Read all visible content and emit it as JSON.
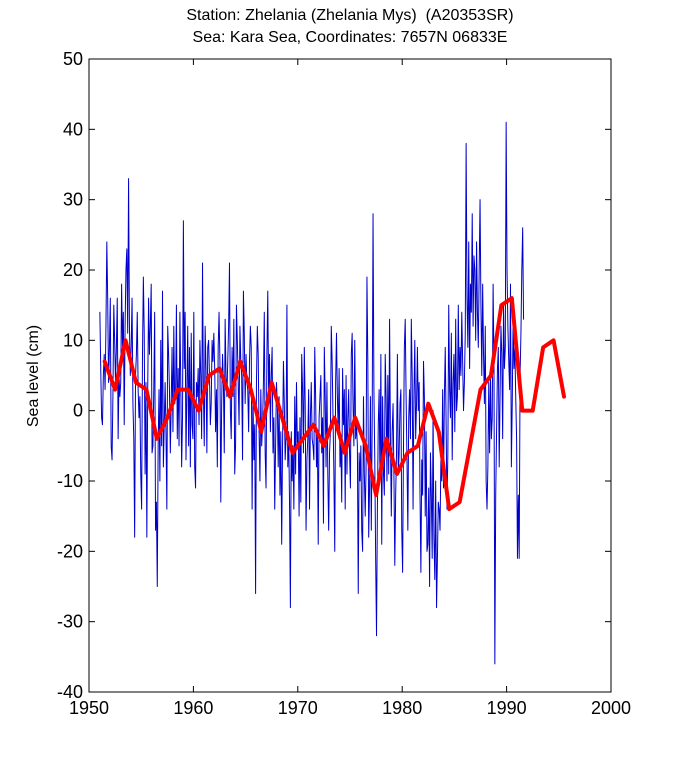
{
  "chart_data": {
    "type": "line",
    "title": "Station: Zhelania (Zhelania Mys)  (A20353SR)",
    "subtitle": "Sea: Kara Sea, Coordinates: 7657N 06833E",
    "xlabel": "",
    "ylabel": "Sea level (cm)",
    "xlim": [
      1950,
      2000
    ],
    "ylim": [
      -40,
      50
    ],
    "xticks": [
      1950,
      1960,
      1970,
      1980,
      1990,
      2000
    ],
    "yticks": [
      -40,
      -30,
      -20,
      -10,
      0,
      10,
      20,
      30,
      40,
      50
    ],
    "grid": false,
    "legend": "none",
    "series": [
      {
        "color": "#0000cc",
        "note": "monthly",
        "x_start": 1951.04,
        "x_step": 0.0833333,
        "values": [
          14,
          6,
          -1,
          -2,
          5,
          8,
          3,
          12,
          24,
          16,
          4,
          9,
          16,
          -5,
          -7,
          2,
          15,
          10,
          4,
          9,
          16,
          -4,
          5,
          2,
          4,
          18,
          9,
          14,
          -2,
          12,
          20,
          23,
          11,
          33,
          12,
          5,
          9,
          16,
          1,
          -4,
          -18,
          5,
          8,
          14,
          3,
          -1,
          2,
          -9,
          -14,
          8,
          19,
          11,
          -9,
          4,
          -18,
          3,
          16,
          8,
          12,
          18,
          -6,
          -5,
          3,
          14,
          -17,
          -13,
          -25,
          -5,
          3,
          -10,
          10,
          -5,
          17,
          -8,
          -2,
          4,
          -3,
          -14,
          12,
          8,
          3,
          -6,
          1,
          9,
          -3,
          12,
          1,
          2,
          15,
          -4,
          6,
          -5,
          14,
          4,
          -8,
          -1,
          27,
          6,
          14,
          -7,
          3,
          12,
          -5,
          9,
          -8,
          11,
          -2,
          -4,
          14,
          -8,
          -11,
          4,
          2,
          6,
          -2,
          10,
          5,
          -4,
          21,
          3,
          -5,
          12,
          6,
          -6,
          9,
          10,
          5,
          -2,
          1,
          10,
          7,
          11,
          6,
          -3,
          3,
          -8,
          9,
          14,
          7,
          -13,
          1,
          8,
          4,
          -6,
          13,
          5,
          2,
          7,
          12,
          21,
          0,
          -4,
          9,
          2,
          13,
          -9,
          -5,
          15,
          10,
          4,
          -2,
          12,
          7,
          5,
          -7,
          17,
          11,
          1,
          8,
          4,
          3,
          -3,
          7,
          12,
          9,
          -14,
          2,
          -7,
          -2,
          -26,
          4,
          12,
          8,
          -3,
          -10,
          3,
          -5,
          -2,
          4,
          14,
          -6,
          -11,
          8,
          17,
          2,
          8,
          -3,
          5,
          9,
          -6,
          -1,
          -14,
          -5,
          4,
          1,
          -8,
          2,
          -12,
          -3,
          -19,
          -5,
          7,
          1,
          -7,
          -4,
          15,
          -8,
          -3,
          -13,
          -28,
          -3,
          -10,
          -5,
          -14,
          2,
          -9,
          4,
          -5,
          -3,
          -15,
          -1,
          -13,
          8,
          3,
          -6,
          9,
          1,
          -17,
          -7,
          -4,
          3,
          -14,
          -1,
          4,
          -4,
          -5,
          -7,
          9,
          2,
          -8,
          -3,
          -19,
          -1,
          2,
          5,
          -6,
          -1,
          -16,
          9,
          2,
          -8,
          4,
          -9,
          -17,
          -6,
          -3,
          12,
          7,
          -1,
          -9,
          -20,
          4,
          11,
          2,
          -3,
          6,
          -8,
          -4,
          -13,
          6,
          -2,
          3,
          -14,
          5,
          -9,
          -1,
          3,
          -6,
          -11,
          8,
          11,
          1,
          -5,
          10,
          -4,
          -2,
          -5,
          -26,
          -6,
          -10,
          -5,
          -17,
          -20,
          2,
          -9,
          -15,
          -8,
          19,
          7,
          -18,
          -11,
          2,
          -17,
          -2,
          28,
          3,
          -7,
          -21,
          -32,
          -14,
          -2,
          3,
          -10,
          8,
          -19,
          2,
          -9,
          -12,
          8,
          2,
          -10,
          5,
          -9,
          13,
          -4,
          -15,
          -3,
          1,
          -9,
          -22,
          -12,
          -6,
          8,
          -9,
          -6,
          1,
          3,
          -17,
          -23,
          -5,
          9,
          13,
          2,
          -7,
          -17,
          -1,
          3,
          -4,
          13,
          5,
          -14,
          2,
          10,
          -4,
          1,
          9,
          0,
          4,
          -12,
          -23,
          -7,
          -12,
          7,
          2,
          -15,
          -3,
          -20,
          -19,
          -11,
          -25,
          -6,
          -12,
          -21,
          0,
          -18,
          -24,
          -10,
          -28,
          -21,
          -13,
          -14,
          -17,
          -7,
          -10,
          3,
          -11,
          2,
          9,
          -2,
          -14,
          -6,
          15,
          3,
          -1,
          11,
          -7,
          4,
          8,
          -3,
          13,
          0,
          2,
          15,
          3,
          9,
          5,
          14,
          7,
          0,
          4,
          11,
          38,
          16,
          9,
          24,
          6,
          18,
          14,
          28,
          12,
          22,
          20,
          10,
          24,
          14,
          9,
          20,
          30,
          15,
          5,
          18,
          8,
          1,
          12,
          -10,
          -14,
          -8,
          4,
          -6,
          5,
          -4,
          -1,
          18,
          7,
          -36,
          -12,
          -3,
          6,
          9,
          -8,
          2,
          12,
          8,
          -4,
          15,
          6,
          9,
          41,
          20,
          12,
          7,
          3,
          18,
          -8,
          1,
          13,
          6,
          9,
          2,
          -4,
          -21,
          -12,
          -21,
          5,
          11,
          20,
          26,
          13
        ]
      },
      {
        "color": "#ff0000",
        "note": "annual mean",
        "x": [
          1951.5,
          1952.5,
          1953.5,
          1954.5,
          1955.5,
          1956.5,
          1957.5,
          1958.5,
          1959.5,
          1960.5,
          1961.5,
          1962.5,
          1963.5,
          1964.5,
          1965.5,
          1966.5,
          1967.5,
          1968.5,
          1969.5,
          1970.5,
          1971.5,
          1972.5,
          1973.5,
          1974.5,
          1975.5,
          1976.5,
          1977.5,
          1978.5,
          1979.5,
          1980.5,
          1981.5,
          1982.5,
          1983.5,
          1984.5,
          1985.5,
          1986.5,
          1987.5,
          1988.5,
          1989.5,
          1990.5,
          1991.5,
          1992.5,
          1993.5,
          1994.5,
          1995.5
        ],
        "values": [
          7,
          3,
          10,
          4,
          3,
          -4,
          -1,
          3,
          3,
          0,
          5,
          6,
          2,
          7,
          3,
          -3,
          4,
          -1,
          -6,
          -4,
          -2,
          -5,
          -1,
          -6,
          -1,
          -5,
          -12,
          -4,
          -9,
          -6,
          -5,
          1,
          -3,
          -14,
          -13,
          -5,
          3,
          5,
          15,
          16,
          0,
          0,
          9,
          10,
          2
        ]
      }
    ]
  }
}
